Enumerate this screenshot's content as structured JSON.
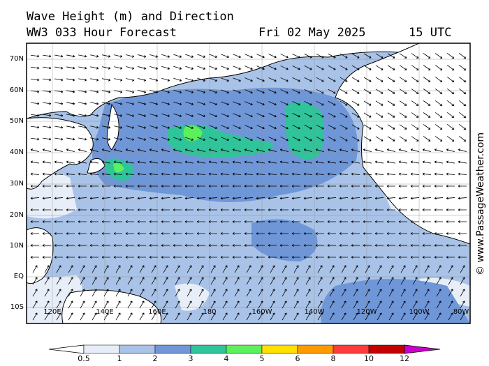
{
  "header": {
    "title": "Wave Height (m) and Direction",
    "model": "WW3 033 Hour Forecast",
    "date": "Fri 02 May 2025",
    "time": "15 UTC"
  },
  "credit": "© www.PassageWeather.com",
  "axes": {
    "lat_labels": [
      "70N",
      "60N",
      "50N",
      "40N",
      "30N",
      "20N",
      "10N",
      "EQ",
      "10S"
    ],
    "lon_labels": [
      "120E",
      "140E",
      "160E",
      "180",
      "160W",
      "140W",
      "120W",
      "100W",
      "80W"
    ]
  },
  "colorbar": {
    "labels": [
      "0.5",
      "1",
      "2",
      "3",
      "4",
      "5",
      "6",
      "8",
      "10",
      "12"
    ],
    "colors": [
      "#e8eef8",
      "#a9c3e8",
      "#6f97d8",
      "#2fc49a",
      "#5cf05c",
      "#ffe000",
      "#ff9900",
      "#ff3a3a",
      "#c40000",
      "#cc00cc"
    ]
  }
}
